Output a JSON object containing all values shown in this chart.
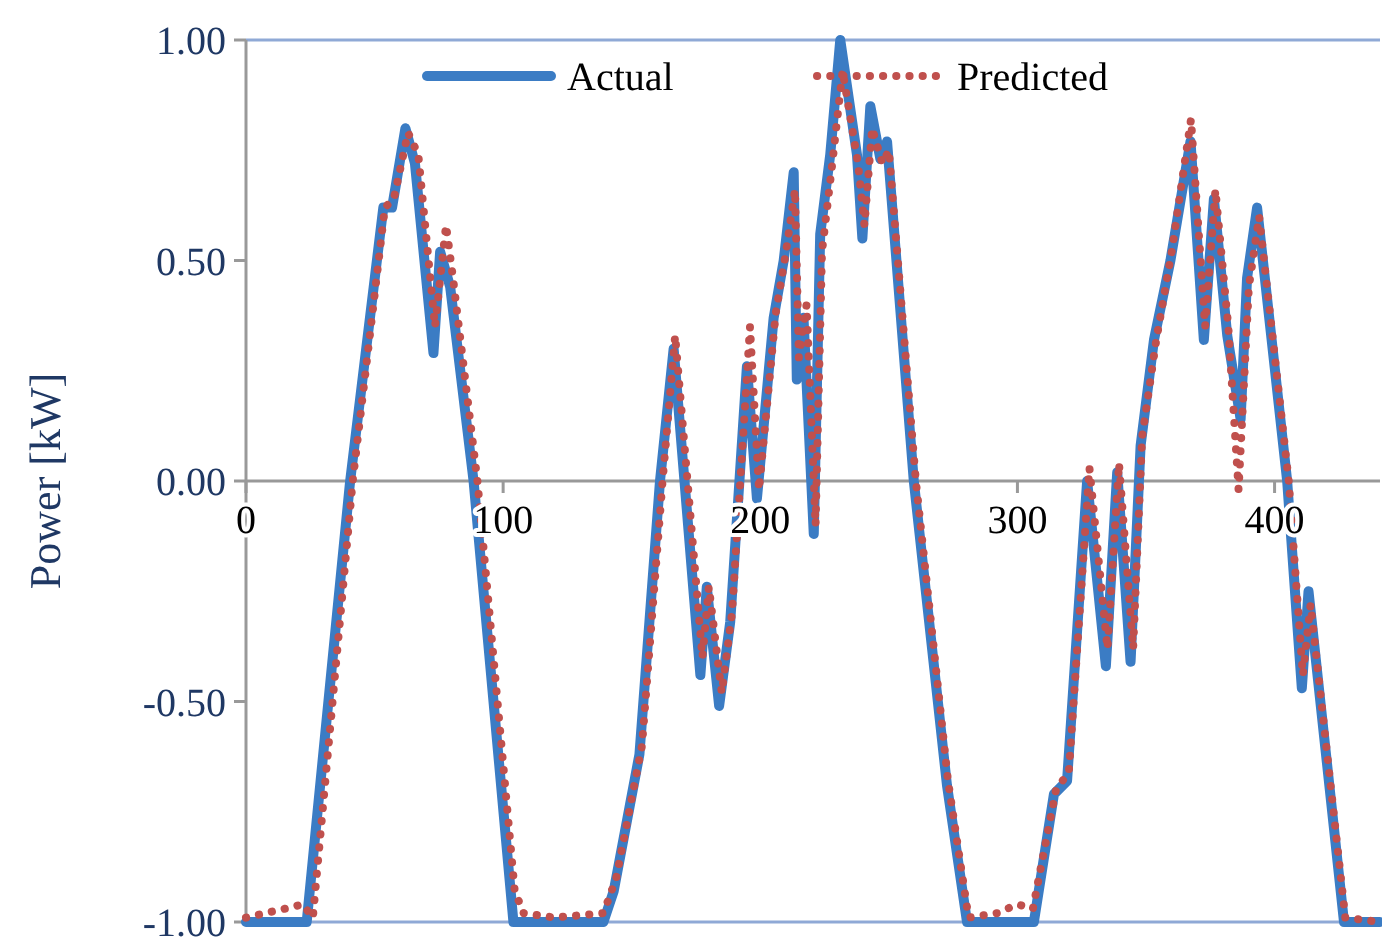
{
  "chart_data": {
    "type": "line",
    "ylabel": "Power [kW]",
    "xlim": [
      0,
      441
    ],
    "ylim": [
      -1,
      1
    ],
    "xticks": [
      0,
      100,
      200,
      300,
      400
    ],
    "yticks": [
      {
        "value": 1,
        "label": "1.00"
      },
      {
        "value": 0.5,
        "label": "0.50"
      },
      {
        "value": 0,
        "label": "0.00"
      },
      {
        "value": -0.5,
        "label": "-0.50"
      },
      {
        "value": -1,
        "label": "-1.00"
      }
    ],
    "grid": false,
    "legend": "top",
    "marker": "none",
    "series": [
      {
        "name": "Actual",
        "color": "#3b7cc4",
        "line_style": "solid",
        "x": [
          0,
          23.6,
          40.5,
          53.4,
          56.8,
          62,
          65.7,
          72.9,
          75.5,
          79.4,
          88.5,
          104,
          139,
          143,
          153,
          161,
          166.3,
          176.7,
          179.2,
          184,
          188.3,
          194.8,
          198.7,
          205.2,
          209.1,
          213,
          214.2,
          216.8,
          220.8,
          223.3,
          227.2,
          231.1,
          237.6,
          239.7,
          242.8,
          246.7,
          249.3,
          259.7,
          272.6,
          280.4,
          306.4,
          314.2,
          319.3,
          327.1,
          334.4,
          338.8,
          344,
          347.9,
          353.1,
          359.5,
          367.3,
          372.5,
          376.4,
          381.6,
          386.8,
          389.3,
          393.2,
          404.9,
          410.6,
          413.2,
          427,
          441
        ],
        "values": [
          -1,
          -1,
          0,
          0.62,
          0.62,
          0.8,
          0.72,
          0.29,
          0.52,
          0.44,
          0,
          -1,
          -1,
          -0.93,
          -0.62,
          0,
          0.3,
          -0.44,
          -0.24,
          -0.51,
          -0.32,
          0.26,
          -0.04,
          0.37,
          0.5,
          0.7,
          0.23,
          0.37,
          -0.12,
          0.56,
          0.74,
          1,
          0.74,
          0.55,
          0.85,
          0.73,
          0.77,
          0,
          -0.69,
          -1,
          -1,
          -0.71,
          -0.68,
          0,
          -0.42,
          0.02,
          -0.41,
          0.08,
          0.32,
          0.5,
          0.77,
          0.32,
          0.64,
          0.33,
          0.14,
          0.46,
          0.62,
          0,
          -0.47,
          -0.25,
          -1,
          -1
        ]
      },
      {
        "name": "Predicted",
        "color": "#c0504d",
        "line_style": "dotted",
        "x": [
          0,
          15,
          22,
          26,
          41.5,
          54,
          57.5,
          63,
          67,
          73.5,
          77.8,
          80.5,
          90,
          104.5,
          108,
          120,
          139,
          144,
          154,
          162,
          166.9,
          177.5,
          180,
          185,
          189,
          196,
          199.5,
          206,
          210,
          213.5,
          215,
          218,
          221.5,
          224,
          228,
          232,
          238,
          240.5,
          243.5,
          247.5,
          250,
          260.5,
          273,
          281,
          292,
          300,
          306,
          315,
          320,
          328,
          335,
          339.5,
          345,
          348.5,
          354,
          360,
          367.5,
          373,
          377,
          382,
          386,
          390,
          394,
          405.5,
          411,
          414,
          427.5,
          441
        ],
        "values": [
          -0.99,
          -0.97,
          -0.96,
          -0.99,
          0,
          0.62,
          0.64,
          0.79,
          0.74,
          0.35,
          0.58,
          0.46,
          0,
          -0.93,
          -0.98,
          -0.99,
          -0.98,
          -0.9,
          -0.6,
          0,
          0.33,
          -0.4,
          -0.24,
          -0.48,
          -0.3,
          0.35,
          -0.02,
          0.38,
          0.52,
          0.66,
          0.28,
          0.4,
          -0.1,
          0.52,
          0.72,
          0.93,
          0.72,
          0.58,
          0.8,
          0.72,
          0.75,
          0,
          -0.68,
          -0.99,
          -0.98,
          -0.96,
          -0.97,
          -0.7,
          -0.66,
          0.03,
          -0.38,
          0.04,
          -0.38,
          0.1,
          0.32,
          0.52,
          0.82,
          0.35,
          0.66,
          0.35,
          -0.02,
          0.44,
          0.6,
          0,
          -0.44,
          -0.28,
          -0.99,
          -1
        ]
      }
    ]
  }
}
